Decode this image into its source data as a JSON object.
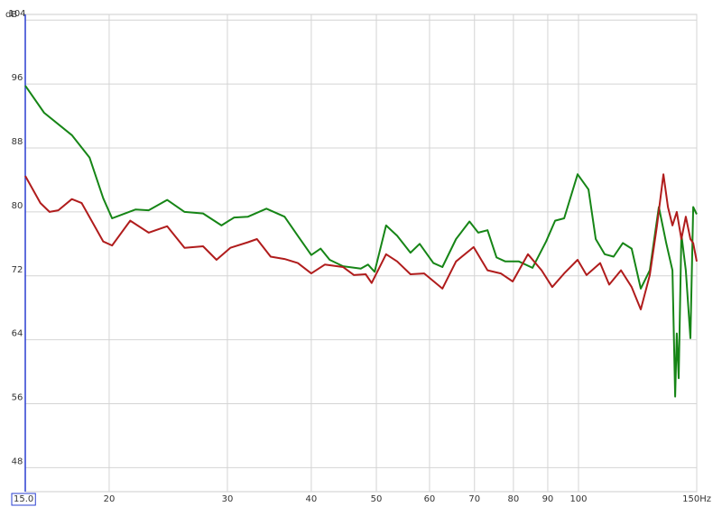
{
  "chart_data": {
    "type": "line",
    "y_label": "dB",
    "x_scale": "log",
    "grid": true,
    "xlim": [
      15,
      150
    ],
    "ylim": [
      45,
      104.7
    ],
    "xticks": [
      {
        "value": 15,
        "label": "15.0"
      },
      20,
      30,
      40,
      50,
      60,
      70,
      80,
      90,
      100,
      {
        "value": 150,
        "label": "150Hz"
      }
    ],
    "yticks": [
      48,
      56,
      64,
      72,
      80,
      88,
      96,
      104
    ],
    "series": [
      {
        "color": "#168516",
        "x": [
          15,
          16.0,
          17.6,
          18.7,
          19.6,
          20.2,
          21.9,
          22.9,
          24.4,
          25.9,
          27.6,
          29.4,
          30.7,
          32.2,
          34.3,
          36.5,
          38.2,
          40.0,
          41.3,
          42.6,
          44.6,
          47.4,
          48.6,
          49.7,
          51.7,
          53.7,
          56.2,
          58.0,
          60.8,
          62.7,
          65.7,
          68.8,
          70.9,
          73.2,
          75.5,
          77.8,
          81.5,
          85.4,
          89.5,
          92.3,
          95.2,
          99.7,
          103.5,
          106.1,
          109.4,
          112.8,
          116.4,
          120.0,
          123.8,
          127.7,
          131.7,
          135.1,
          138.0,
          139.3,
          140.1,
          141.0,
          142.3,
          144.5,
          146.8,
          148.2,
          150
        ],
        "values": [
          95.8,
          92.4,
          89.6,
          86.8,
          81.7,
          79.2,
          80.3,
          80.2,
          81.5,
          80,
          79.8,
          78.3,
          79.3,
          79.4,
          80.4,
          79.4,
          77,
          74.6,
          75.4,
          74,
          73.2,
          72.9,
          73.4,
          72.5,
          78.3,
          77,
          74.9,
          76,
          73.6,
          73.1,
          76.6,
          78.8,
          77.4,
          77.7,
          74.3,
          73.8,
          73.8,
          73,
          76.3,
          78.9,
          79.2,
          84.7,
          82.8,
          76.6,
          74.7,
          74.4,
          76.1,
          75.4,
          70.4,
          72.7,
          80.6,
          76.1,
          72.7,
          56.9,
          64.8,
          59.2,
          77.2,
          72.7,
          64.2,
          80.6,
          79.7
        ]
      },
      {
        "color": "#b01c1c",
        "x": [
          15,
          15.8,
          16.3,
          16.8,
          17.6,
          18.2,
          19.6,
          20.2,
          21.5,
          22.9,
          24.4,
          25.9,
          27.6,
          28.9,
          30.3,
          32.2,
          33.2,
          34.8,
          36.5,
          38.2,
          40.0,
          41.9,
          44.6,
          46.3,
          48.2,
          49.2,
          51.7,
          53.7,
          56.2,
          58.9,
          62.7,
          65.7,
          69.8,
          73.2,
          76.6,
          79.8,
          84.1,
          88.1,
          91.4,
          95.2,
          99.7,
          102.8,
          107.7,
          111.1,
          115.7,
          120.0,
          123.8,
          127.7,
          130.9,
          133.8,
          135.9,
          138.0,
          140.1,
          142.3,
          144.5,
          146.8,
          148.2,
          150
        ],
        "values": [
          84.5,
          81.1,
          80,
          80.2,
          81.6,
          81.1,
          76.3,
          75.8,
          78.9,
          77.4,
          78.2,
          75.5,
          75.7,
          74,
          75.5,
          76.2,
          76.6,
          74.4,
          74.1,
          73.6,
          72.3,
          73.4,
          73.1,
          72.1,
          72.2,
          71.1,
          74.7,
          73.8,
          72.2,
          72.3,
          70.4,
          73.8,
          75.6,
          72.7,
          72.3,
          71.3,
          74.7,
          72.7,
          70.6,
          72.3,
          74,
          72.1,
          73.6,
          70.9,
          72.7,
          70.6,
          67.8,
          72.1,
          78.3,
          84.7,
          80.6,
          78.3,
          80,
          76.6,
          79.4,
          76.6,
          76.1,
          73.8
        ]
      }
    ]
  }
}
